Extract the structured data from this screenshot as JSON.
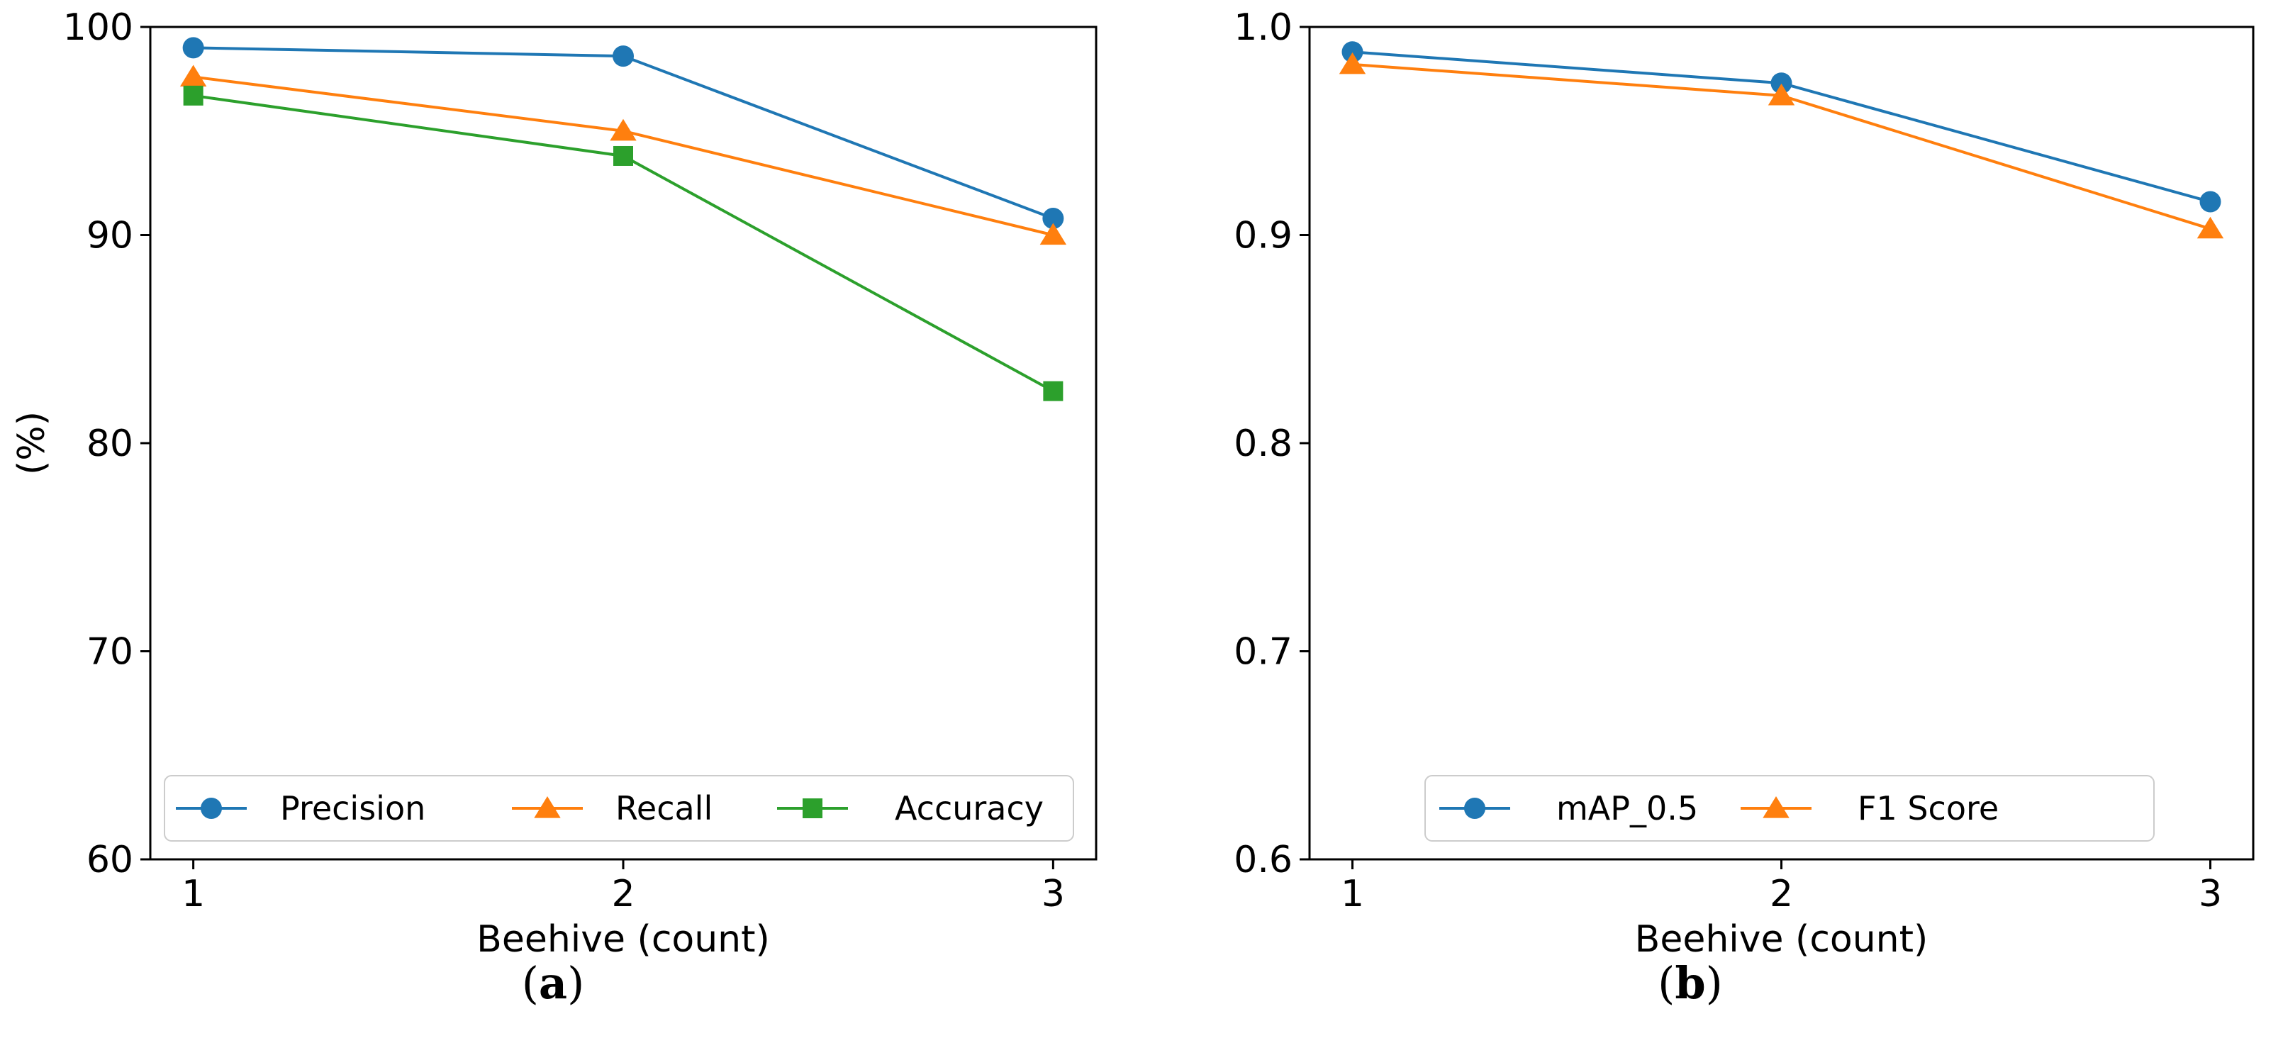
{
  "chart_data": [
    {
      "type": "line",
      "caption": {
        "open": "(",
        "letter": "a",
        "close": ")"
      },
      "xlabel": "Beehive (count)",
      "ylabel": "(%)",
      "x": [
        1,
        2,
        3
      ],
      "xticks": [
        "1",
        "2",
        "3"
      ],
      "xlim": [
        0.9,
        3.1
      ],
      "ylim": [
        60,
        100
      ],
      "yticks": [
        60,
        70,
        80,
        90,
        100
      ],
      "ytick_labels": [
        "60",
        "70",
        "80",
        "90",
        "100"
      ],
      "legend_position": "bottom",
      "series": [
        {
          "name": "Precision",
          "values": [
            99.0,
            98.6,
            90.8
          ],
          "color": "#1f77b4",
          "marker": "circle"
        },
        {
          "name": "Recall",
          "values": [
            97.6,
            95.0,
            90.0
          ],
          "color": "#ff7f0e",
          "marker": "triangle"
        },
        {
          "name": "Accuracy",
          "values": [
            96.7,
            93.8,
            82.5
          ],
          "color": "#2ca02c",
          "marker": "square"
        }
      ]
    },
    {
      "type": "line",
      "caption": {
        "open": "(",
        "letter": "b",
        "close": ")"
      },
      "xlabel": "Beehive (count)",
      "ylabel": "",
      "x": [
        1,
        2,
        3
      ],
      "xticks": [
        "1",
        "2",
        "3"
      ],
      "xlim": [
        0.9,
        3.1
      ],
      "ylim": [
        0.6,
        1.0
      ],
      "yticks": [
        0.6,
        0.7,
        0.8,
        0.9,
        1.0
      ],
      "ytick_labels": [
        "0.6",
        "0.7",
        "0.8",
        "0.9",
        "1.0"
      ],
      "legend_position": "bottom",
      "series": [
        {
          "name": "mAP_0.5",
          "values": [
            0.988,
            0.973,
            0.916
          ],
          "color": "#1f77b4",
          "marker": "circle"
        },
        {
          "name": "F1 Score",
          "values": [
            0.982,
            0.967,
            0.903
          ],
          "color": "#ff7f0e",
          "marker": "triangle"
        }
      ]
    }
  ]
}
